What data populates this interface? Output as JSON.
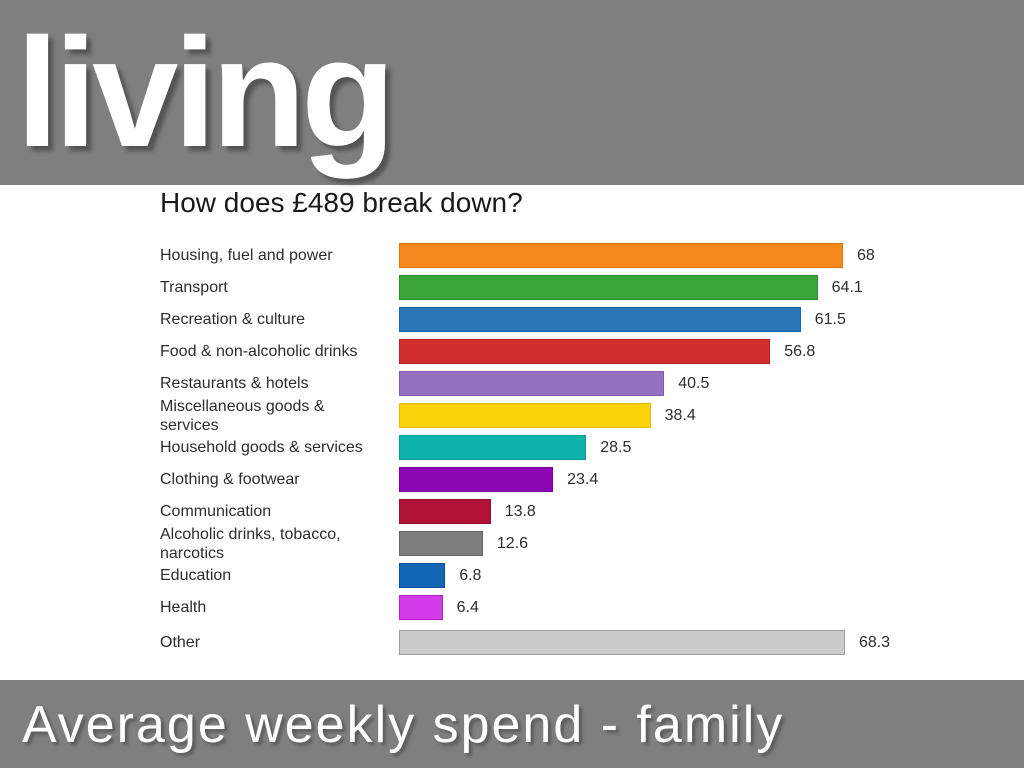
{
  "slide": {
    "header_title": "living",
    "caption": "Average weekly spend - family"
  },
  "colors": {
    "slide_background": "#7F7F7F",
    "panel_background": "#FFFFFF",
    "header_text": "#FFFFFF",
    "title_text": "#1A1A1A",
    "label_text": "#2D2D2D"
  },
  "chart_data": {
    "type": "bar",
    "orientation": "horizontal",
    "title": "How does £489 break down?",
    "categories": [
      "Housing, fuel and power",
      "Transport",
      "Recreation & culture",
      "Food & non-alcoholic drinks",
      "Restaurants & hotels",
      "Miscellaneous goods & services",
      "Household goods & services",
      "Clothing & footwear",
      "Communication",
      "Alcoholic drinks, tobacco, narcotics",
      "Education",
      "Health",
      "Other"
    ],
    "display_labels": [
      "Housing, fuel and power",
      "Transport",
      "Recreation & culture",
      "Food & non-alcoholic drinks",
      "Restaurants & hotels",
      "Miscellaneous goods &\nservices",
      "Household goods & services",
      "Clothing & footwear",
      "Communication",
      "Alcoholic drinks, tobacco,\nnarcotics",
      "Education",
      "Health",
      "Other"
    ],
    "values": [
      68,
      64.1,
      61.5,
      56.8,
      40.5,
      38.4,
      28.5,
      23.4,
      13.8,
      12.6,
      6.8,
      6.4,
      68.3
    ],
    "value_labels": [
      "68",
      "64.1",
      "61.5",
      "56.8",
      "40.5",
      "38.4",
      "28.5",
      "23.4",
      "13.8",
      "12.6",
      "6.8",
      "6.4",
      "68.3"
    ],
    "bar_colors": [
      "#F6891E",
      "#3BA43A",
      "#2C76B8",
      "#D32E2E",
      "#9670C1",
      "#FCD20B",
      "#0DB3AB",
      "#8C08B4",
      "#B01337",
      "#7D7D7D",
      "#1366B4",
      "#D33BE8",
      "#CBCBCB"
    ],
    "bar_border_colors": [
      "#E0750E",
      "#2C8B2B",
      "#1D63A6",
      "#B42020",
      "#8159AF",
      "#E3BC05",
      "#089990",
      "#76069A",
      "#970F2E",
      "#656565",
      "#0C4F96",
      "#B21DC8",
      "#9D9D9D"
    ],
    "xlim": [
      0,
      70
    ],
    "grid": false,
    "legend": false
  }
}
